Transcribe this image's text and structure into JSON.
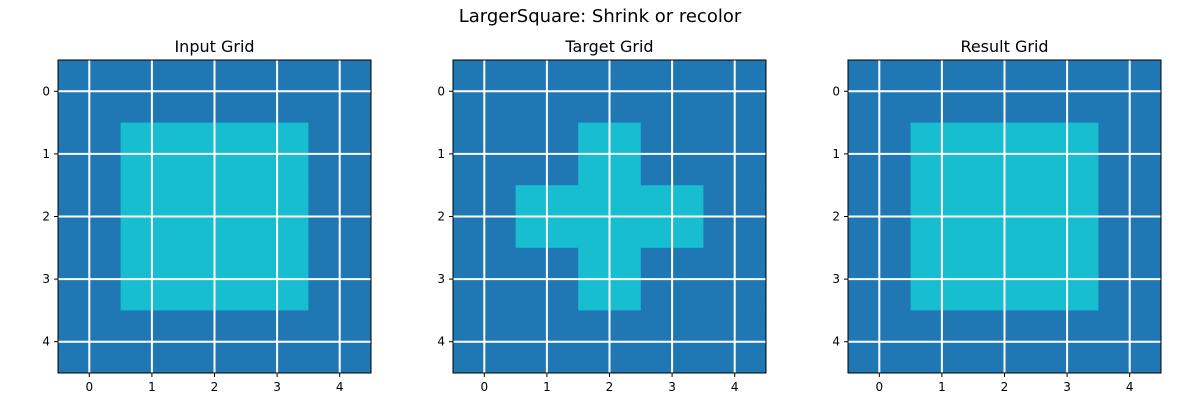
{
  "figure": {
    "title": "LargerSquare: Shrink or recolor"
  },
  "colors": {
    "background_cell": "#1f77b4",
    "foreground_cell": "#17becf",
    "grid_line": "#ffffff",
    "axes_edge": "#000000"
  },
  "chart_data": [
    {
      "type": "heatmap",
      "title": "Input Grid",
      "xlabel": "",
      "ylabel": "",
      "x_ticks": [
        "0",
        "1",
        "2",
        "3",
        "4"
      ],
      "y_ticks": [
        "0",
        "1",
        "2",
        "3",
        "4"
      ],
      "grid": true,
      "values": [
        [
          0,
          0,
          0,
          0,
          0
        ],
        [
          0,
          1,
          1,
          1,
          0
        ],
        [
          0,
          1,
          1,
          1,
          0
        ],
        [
          0,
          1,
          1,
          1,
          0
        ],
        [
          0,
          0,
          0,
          0,
          0
        ]
      ]
    },
    {
      "type": "heatmap",
      "title": "Target Grid",
      "xlabel": "",
      "ylabel": "",
      "x_ticks": [
        "0",
        "1",
        "2",
        "3",
        "4"
      ],
      "y_ticks": [
        "0",
        "1",
        "2",
        "3",
        "4"
      ],
      "grid": true,
      "values": [
        [
          0,
          0,
          0,
          0,
          0
        ],
        [
          0,
          0,
          1,
          0,
          0
        ],
        [
          0,
          1,
          1,
          1,
          0
        ],
        [
          0,
          0,
          1,
          0,
          0
        ],
        [
          0,
          0,
          0,
          0,
          0
        ]
      ]
    },
    {
      "type": "heatmap",
      "title": "Result Grid",
      "xlabel": "",
      "ylabel": "",
      "x_ticks": [
        "0",
        "1",
        "2",
        "3",
        "4"
      ],
      "y_ticks": [
        "0",
        "1",
        "2",
        "3",
        "4"
      ],
      "grid": true,
      "values": [
        [
          0,
          0,
          0,
          0,
          0
        ],
        [
          0,
          1,
          1,
          1,
          0
        ],
        [
          0,
          1,
          1,
          1,
          0
        ],
        [
          0,
          1,
          1,
          1,
          0
        ],
        [
          0,
          0,
          0,
          0,
          0
        ]
      ]
    }
  ]
}
